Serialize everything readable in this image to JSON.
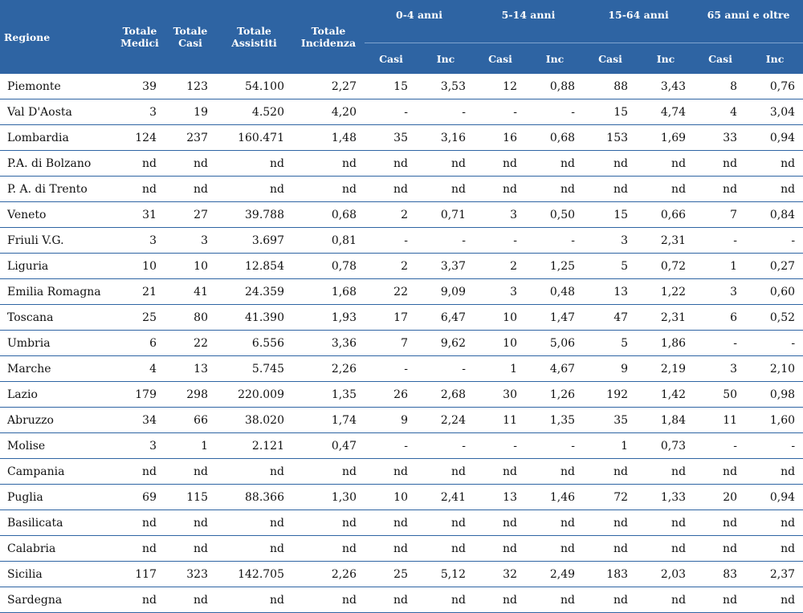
{
  "header": {
    "regione": "Regione",
    "totale_medici": [
      "Totale",
      "Medici"
    ],
    "totale_casi": [
      "Totale",
      "Casi"
    ],
    "totale_assistiti": [
      "Totale",
      "Assistiti"
    ],
    "totale_incidenza": [
      "Totale",
      "Incidenza"
    ],
    "age_groups": [
      "0-4 anni",
      "5-14 anni",
      "15-64 anni",
      "65 anni e oltre"
    ],
    "sub_casi": "Casi",
    "sub_inc": "Inc"
  },
  "rows": [
    [
      "Piemonte",
      "39",
      "123",
      "54.100",
      "2,27",
      "15",
      "3,53",
      "12",
      "0,88",
      "88",
      "3,43",
      "8",
      "0,76"
    ],
    [
      "Val D'Aosta",
      "3",
      "19",
      "4.520",
      "4,20",
      "-",
      "-",
      "-",
      "-",
      "15",
      "4,74",
      "4",
      "3,04"
    ],
    [
      "Lombardia",
      "124",
      "237",
      "160.471",
      "1,48",
      "35",
      "3,16",
      "16",
      "0,68",
      "153",
      "1,69",
      "33",
      "0,94"
    ],
    [
      "P.A. di Bolzano",
      "nd",
      "nd",
      "nd",
      "nd",
      "nd",
      "nd",
      "nd",
      "nd",
      "nd",
      "nd",
      "nd",
      "nd"
    ],
    [
      "P. A. di Trento",
      "nd",
      "nd",
      "nd",
      "nd",
      "nd",
      "nd",
      "nd",
      "nd",
      "nd",
      "nd",
      "nd",
      "nd"
    ],
    [
      "Veneto",
      "31",
      "27",
      "39.788",
      "0,68",
      "2",
      "0,71",
      "3",
      "0,50",
      "15",
      "0,66",
      "7",
      "0,84"
    ],
    [
      "Friuli V.G.",
      "3",
      "3",
      "3.697",
      "0,81",
      "-",
      "-",
      "-",
      "-",
      "3",
      "2,31",
      "-",
      "-"
    ],
    [
      "Liguria",
      "10",
      "10",
      "12.854",
      "0,78",
      "2",
      "3,37",
      "2",
      "1,25",
      "5",
      "0,72",
      "1",
      "0,27"
    ],
    [
      "Emilia Romagna",
      "21",
      "41",
      "24.359",
      "1,68",
      "22",
      "9,09",
      "3",
      "0,48",
      "13",
      "1,22",
      "3",
      "0,60"
    ],
    [
      "Toscana",
      "25",
      "80",
      "41.390",
      "1,93",
      "17",
      "6,47",
      "10",
      "1,47",
      "47",
      "2,31",
      "6",
      "0,52"
    ],
    [
      "Umbria",
      "6",
      "22",
      "6.556",
      "3,36",
      "7",
      "9,62",
      "10",
      "5,06",
      "5",
      "1,86",
      "-",
      "-"
    ],
    [
      "Marche",
      "4",
      "13",
      "5.745",
      "2,26",
      "-",
      "-",
      "1",
      "4,67",
      "9",
      "2,19",
      "3",
      "2,10"
    ],
    [
      "Lazio",
      "179",
      "298",
      "220.009",
      "1,35",
      "26",
      "2,68",
      "30",
      "1,26",
      "192",
      "1,42",
      "50",
      "0,98"
    ],
    [
      "Abruzzo",
      "34",
      "66",
      "38.020",
      "1,74",
      "9",
      "2,24",
      "11",
      "1,35",
      "35",
      "1,84",
      "11",
      "1,60"
    ],
    [
      "Molise",
      "3",
      "1",
      "2.121",
      "0,47",
      "-",
      "-",
      "-",
      "-",
      "1",
      "0,73",
      "-",
      "-"
    ],
    [
      "Campania",
      "nd",
      "nd",
      "nd",
      "nd",
      "nd",
      "nd",
      "nd",
      "nd",
      "nd",
      "nd",
      "nd",
      "nd"
    ],
    [
      "Puglia",
      "69",
      "115",
      "88.366",
      "1,30",
      "10",
      "2,41",
      "13",
      "1,46",
      "72",
      "1,33",
      "20",
      "0,94"
    ],
    [
      "Basilicata",
      "nd",
      "nd",
      "nd",
      "nd",
      "nd",
      "nd",
      "nd",
      "nd",
      "nd",
      "nd",
      "nd",
      "nd"
    ],
    [
      "Calabria",
      "nd",
      "nd",
      "nd",
      "nd",
      "nd",
      "nd",
      "nd",
      "nd",
      "nd",
      "nd",
      "nd",
      "nd"
    ],
    [
      "Sicilia",
      "117",
      "323",
      "142.705",
      "2,26",
      "25",
      "5,12",
      "32",
      "2,49",
      "183",
      "2,03",
      "83",
      "2,37"
    ],
    [
      "Sardegna",
      "nd",
      "nd",
      "nd",
      "nd",
      "nd",
      "nd",
      "nd",
      "nd",
      "nd",
      "nd",
      "nd",
      "nd"
    ]
  ]
}
